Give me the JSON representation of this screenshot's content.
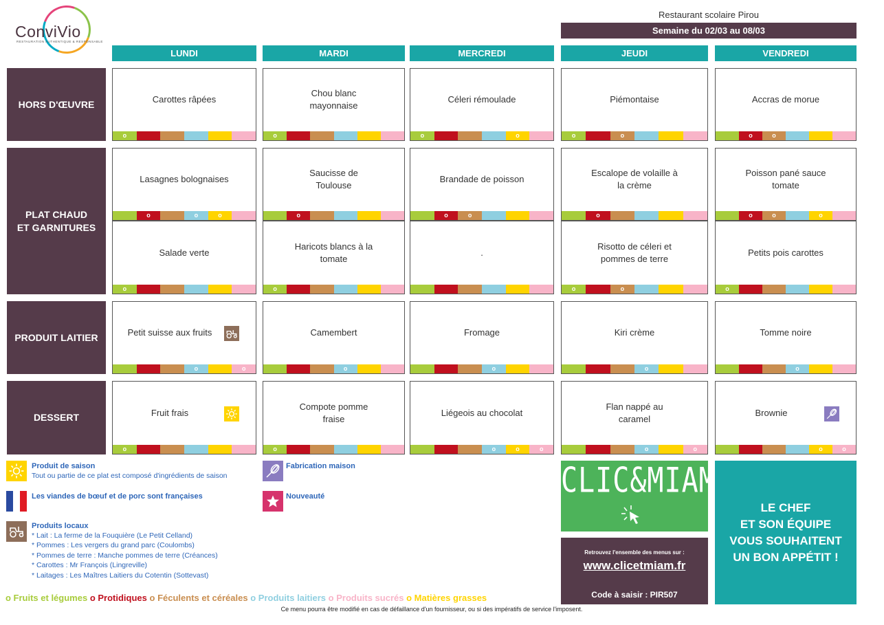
{
  "header": {
    "logo_text": "ConviVio",
    "logo_tagline": "RESTAURATION AUTHENTIQUE & RESPONSABLE",
    "restaurant": "Restaurant scolaire Pirou",
    "week": "Semaine du 02/03 au 08/03"
  },
  "days": [
    "LUNDI",
    "MARDI",
    "MERCREDI",
    "JEUDI",
    "VENDREDI"
  ],
  "sections": [
    {
      "label": [
        "HORS D'ŒUVRE"
      ]
    },
    {
      "label": [
        "PLAT CHAUD",
        "ET GARNITURES"
      ]
    },
    {
      "label": [
        "PRODUIT LAITIER"
      ]
    },
    {
      "label": [
        "DESSERT"
      ]
    }
  ],
  "category_colors": [
    "#a8cc3c",
    "#c0101e",
    "#c98e50",
    "#8fcfe0",
    "#ffd400",
    "#f8b4c8"
  ],
  "bar_marker": "o",
  "menu": [
    [
      {
        "lines": [
          "Carottes râpées"
        ],
        "marks": [
          0
        ],
        "badge": null
      },
      {
        "lines": [
          "Chou blanc",
          "mayonnaise"
        ],
        "marks": [
          0
        ],
        "badge": null
      },
      {
        "lines": [
          "Céleri rémoulade"
        ],
        "marks": [
          0,
          4
        ],
        "badge": null
      },
      {
        "lines": [
          "Piémontaise"
        ],
        "marks": [
          0,
          2
        ],
        "badge": null
      },
      {
        "lines": [
          "Accras de morue"
        ],
        "marks": [
          1,
          2
        ],
        "badge": null
      }
    ],
    [
      {
        "lines": [
          "Lasagnes bolognaises"
        ],
        "marks": [
          1,
          3,
          4
        ],
        "badge": null
      },
      {
        "lines": [
          "Saucisse de",
          "Toulouse"
        ],
        "marks": [
          1
        ],
        "badge": null
      },
      {
        "lines": [
          "Brandade de poisson"
        ],
        "marks": [
          1,
          2
        ],
        "badge": null
      },
      {
        "lines": [
          "Escalope de volaille à",
          "la crème"
        ],
        "marks": [
          1
        ],
        "badge": null
      },
      {
        "lines": [
          "Poisson pané sauce",
          "tomate"
        ],
        "marks": [
          1,
          2,
          4
        ],
        "badge": null
      }
    ],
    [
      {
        "lines": [
          "Salade verte"
        ],
        "marks": [
          0
        ],
        "badge": null
      },
      {
        "lines": [
          "Haricots blancs à la",
          "tomate"
        ],
        "marks": [
          0
        ],
        "badge": null
      },
      {
        "lines": [
          "."
        ],
        "marks": [],
        "badge": null
      },
      {
        "lines": [
          "Risotto de céleri et",
          "pommes de terre"
        ],
        "marks": [
          0,
          2
        ],
        "badge": null
      },
      {
        "lines": [
          "Petits pois carottes"
        ],
        "marks": [
          0
        ],
        "badge": null
      }
    ],
    [
      {
        "lines": [
          "Petit suisse aux fruits"
        ],
        "marks": [
          3,
          5
        ],
        "badge": "tractor"
      },
      {
        "lines": [
          "Camembert"
        ],
        "marks": [
          3
        ],
        "badge": null
      },
      {
        "lines": [
          "Fromage"
        ],
        "marks": [
          3
        ],
        "badge": null
      },
      {
        "lines": [
          "Kiri crème"
        ],
        "marks": [
          3
        ],
        "badge": null
      },
      {
        "lines": [
          "Tomme noire"
        ],
        "marks": [
          3
        ],
        "badge": null
      }
    ],
    [
      {
        "lines": [
          "Fruit frais"
        ],
        "marks": [
          0
        ],
        "badge": "sun"
      },
      {
        "lines": [
          "Compote pomme",
          "fraise"
        ],
        "marks": [
          0
        ],
        "badge": null
      },
      {
        "lines": [
          "Liégeois au chocolat"
        ],
        "marks": [
          3,
          4,
          5
        ],
        "badge": null
      },
      {
        "lines": [
          "Flan nappé au",
          "caramel"
        ],
        "marks": [
          3,
          5
        ],
        "badge": null
      },
      {
        "lines": [
          "Brownie"
        ],
        "marks": [
          4,
          5
        ],
        "badge": "whisk"
      }
    ]
  ],
  "legend": {
    "saison_title": "Produit de saison",
    "saison_text": "Tout ou partie de ce plat est composé d'ingrédients de saison",
    "viandes": "Les viandes de bœuf et de porc sont françaises",
    "locaux_title": "Produits locaux",
    "locaux_lines": [
      "* Lait : La ferme de la Fouquière (Le Petit Celland)",
      "* Pommes : Les vergers du grand parc (Coulombs)",
      "* Pommes de terre : Manche pommes de terre (Créances)",
      "* Carottes : Mr François (Lingreville)",
      "* Laitages : Les Maîtres Laitiers du Cotentin (Sottevast)"
    ],
    "maison": "Fabrication maison",
    "nouveaute": "Nouveauté"
  },
  "categories": [
    {
      "text": "o Fruits et légumes",
      "color": "#a8cc3c"
    },
    {
      "text": "o Protidiques",
      "color": "#c0101e"
    },
    {
      "text": "o Féculents et céréales",
      "color": "#c98e50"
    },
    {
      "text": "o Produits laitiers",
      "color": "#8fcfe0"
    },
    {
      "text": "o Produits sucrés",
      "color": "#f8b4c8"
    },
    {
      "text": "o Matières grasses",
      "color": "#ffd400"
    }
  ],
  "clic": {
    "title": "CLIC&MIAM!",
    "retrouvez": "Retrouvez l'ensemble des menus sur :",
    "url": "www.clicetmiam.fr",
    "code": "Code à saisir : PIR507"
  },
  "chef_lines": [
    "LE CHEF",
    "ET SON ÉQUIPE",
    "VOUS SOUHAITENT",
    "UN BON APPÉTIT !"
  ],
  "footnote": "Ce menu pourra être modifié en cas de défaillance d'un fournisseur, ou si des impératifs de service l'imposent."
}
